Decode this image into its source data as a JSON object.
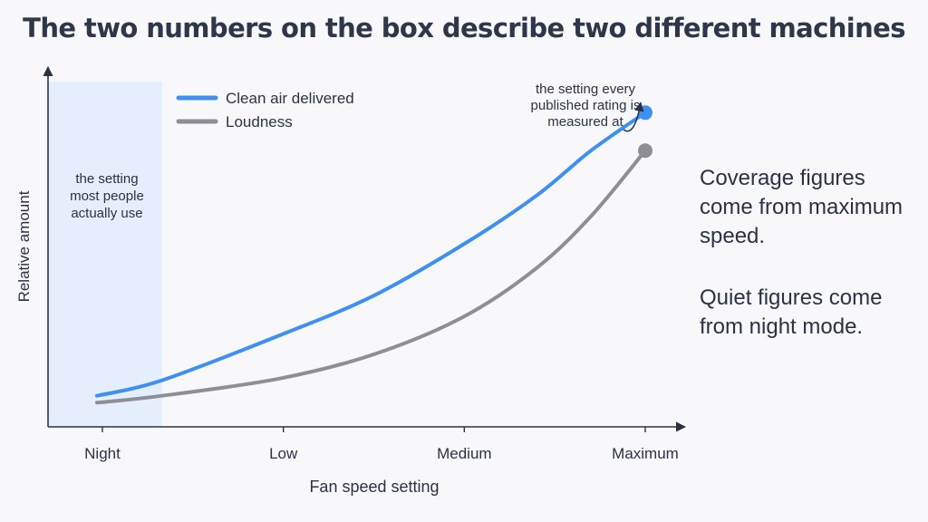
{
  "title": "The two numbers on the box describe two different machines",
  "chart_data": {
    "type": "line",
    "categories": [
      "Night",
      "Low",
      "Medium",
      "Maximum"
    ],
    "xlabel": "Fan speed setting",
    "ylabel": "Relative amount",
    "ylim": [
      0,
      100
    ],
    "series": [
      {
        "name": "Clean air delivered",
        "color": "#3d8ff0",
        "x": [
          -0.03,
          0.33,
          0.98,
          1.5,
          2.0,
          2.4,
          2.7,
          3.0
        ],
        "values": [
          9,
          13.5,
          26.5,
          38,
          53,
          67,
          80,
          91
        ]
      },
      {
        "name": "Loudness",
        "color": "#8e8e94",
        "x": [
          -0.03,
          0.33,
          0.98,
          1.5,
          2.0,
          2.4,
          2.7,
          3.0
        ],
        "values": [
          7,
          9,
          14,
          21,
          32,
          46,
          61,
          80
        ]
      }
    ],
    "shaded_region": {
      "x_start": -0.03,
      "x_end": 0.33,
      "label": [
        "the setting",
        "most people",
        "actually use"
      ]
    },
    "callout": {
      "label": [
        "the setting every",
        "published rating is",
        "measured at"
      ],
      "series_index": 0
    },
    "grid": false,
    "legend_position": "top-left"
  },
  "takeaways": {
    "coverage": "Coverage figures come from maximum speed.",
    "quiet": "Quiet figures come from night mode."
  }
}
